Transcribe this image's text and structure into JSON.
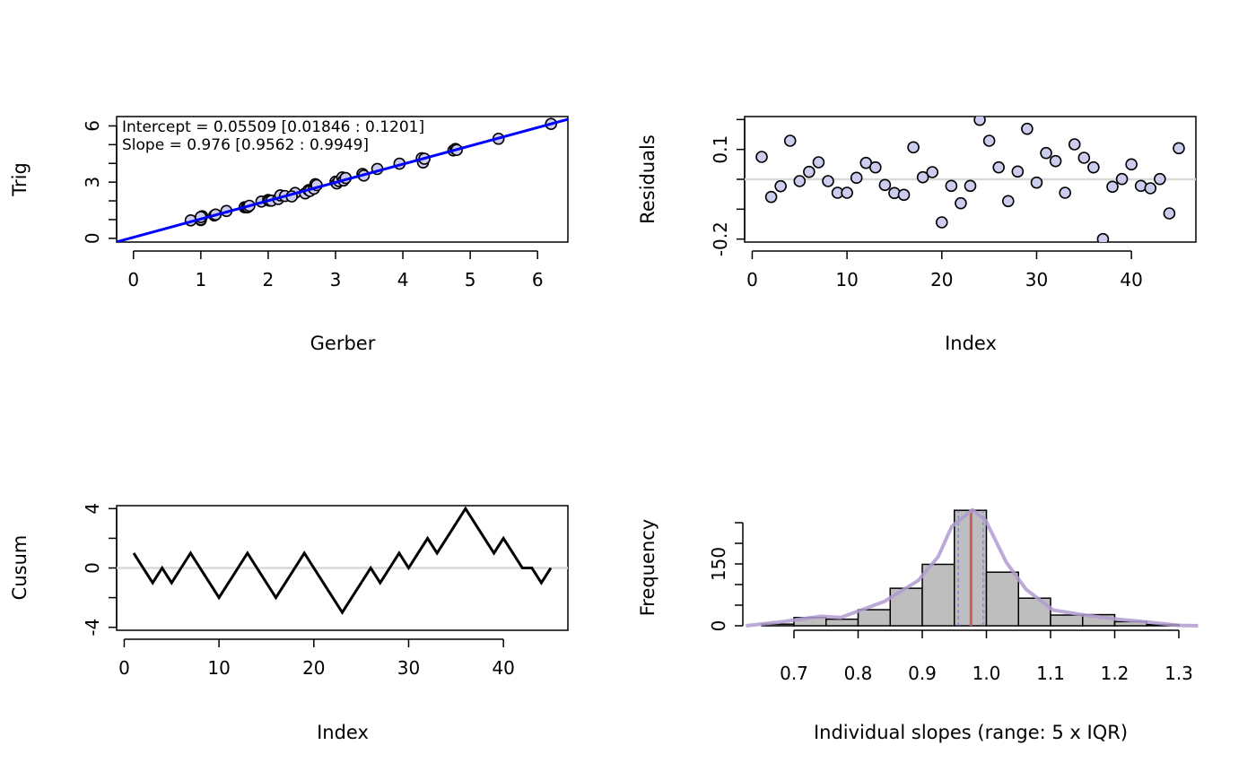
{
  "chart_data": [
    {
      "id": "scatter",
      "type": "scatter",
      "xlabel": "Gerber",
      "ylabel": "Trig",
      "xlim": [
        -0.25,
        6.45
      ],
      "ylim": [
        -0.2,
        6.5
      ],
      "xticks": [
        "0",
        "1",
        "2",
        "3",
        "4",
        "5",
        "6"
      ],
      "yticks": [
        "0",
        "3",
        "6"
      ],
      "yminor": [
        1,
        2,
        4,
        5
      ],
      "annotations": [
        "Intercept = 0.05509 [0.01846 : 0.1201]",
        "Slope = 0.976 [0.9562 : 0.9949]"
      ],
      "fit": {
        "intercept": 0.05509,
        "slope": 0.976,
        "color": "#0000ff"
      },
      "point_fill": "#ccccee",
      "x": [
        0.85,
        1.0,
        1.0,
        1.02,
        1.2,
        1.22,
        1.38,
        1.65,
        1.68,
        1.7,
        1.72,
        1.9,
        2.0,
        2.02,
        2.05,
        2.15,
        2.18,
        2.25,
        2.4,
        2.55,
        2.6,
        2.62,
        2.68,
        2.7,
        2.72,
        3.0,
        3.02,
        3.05,
        3.1,
        3.12,
        3.15,
        3.4,
        3.42,
        3.62,
        3.95,
        4.28,
        4.3,
        4.32,
        4.75,
        4.78,
        4.8,
        5.42,
        6.2,
        2.35,
        1.0
      ]
    },
    {
      "id": "residuals",
      "type": "scatter",
      "xlabel": "Index",
      "ylabel": "Residuals",
      "xlim": [
        -0.8,
        46.8
      ],
      "ylim": [
        -0.21,
        0.21
      ],
      "xticks": [
        "0",
        "10",
        "20",
        "30",
        "40"
      ],
      "yticks": [
        "-0.2",
        "0.1"
      ],
      "ytick_values": [
        -0.2,
        -0.1,
        0,
        0.1,
        0.2
      ],
      "reference_line": 0,
      "point_fill": "#ccccee",
      "values": [
        0.075,
        -0.059,
        -0.023,
        0.129,
        -0.006,
        0.025,
        0.057,
        -0.006,
        -0.045,
        -0.045,
        0.005,
        0.055,
        0.04,
        -0.019,
        -0.046,
        -0.052,
        0.107,
        0.007,
        0.024,
        -0.144,
        -0.022,
        -0.08,
        -0.022,
        0.199,
        0.129,
        0.04,
        -0.073,
        0.026,
        0.169,
        -0.011,
        0.088,
        0.061,
        -0.045,
        0.117,
        0.072,
        0.04,
        -0.2,
        -0.025,
        0.001,
        0.05,
        -0.022,
        -0.03,
        0.001,
        -0.114,
        0.104
      ]
    },
    {
      "id": "cusum",
      "type": "line",
      "xlabel": "Index",
      "ylabel": "Cusum",
      "xlim": [
        -0.8,
        46.8
      ],
      "ylim": [
        -4.2,
        4.2
      ],
      "xticks": [
        "0",
        "10",
        "20",
        "30",
        "40"
      ],
      "yticks": [
        "-4",
        "0",
        "4"
      ],
      "ytick_values": [
        -4,
        -2,
        0,
        2,
        4
      ],
      "reference_line": 0,
      "values": [
        1,
        0,
        -1,
        0,
        -1,
        0,
        1,
        0,
        -1,
        -2,
        -1,
        0,
        1,
        0,
        -1,
        -2,
        -1,
        0,
        1,
        0,
        -1,
        -2,
        -3,
        -2,
        -1,
        0,
        -1,
        0,
        1,
        0,
        1,
        2,
        1,
        2,
        3,
        4,
        3,
        2,
        1,
        2,
        1,
        0,
        0,
        -1,
        0
      ]
    },
    {
      "id": "histogram",
      "type": "bar",
      "xlabel": "Individual slopes (range: 5 x IQR)",
      "ylabel": "Frequency",
      "xlim": [
        0.62,
        1.33
      ],
      "ylim": [
        0,
        285
      ],
      "xticks": [
        "0.7",
        "0.8",
        "0.9",
        "1.0",
        "1.1",
        "1.2",
        "1.3"
      ],
      "yticks": [
        "0",
        "150"
      ],
      "ytick_values": [
        0,
        50,
        100,
        150,
        200,
        250
      ],
      "bin_edges": [
        0.65,
        0.7,
        0.75,
        0.8,
        0.85,
        0.9,
        0.95,
        1.0,
        1.05,
        1.1,
        1.15,
        1.2,
        1.25,
        1.3
      ],
      "counts": [
        4,
        20,
        16,
        39,
        91,
        149,
        280,
        130,
        67,
        26,
        27,
        10,
        3
      ],
      "bar_fill": "#bebebe",
      "density_color": "#b19cd0",
      "density": [
        [
          0.625,
          0
        ],
        [
          0.683,
          10
        ],
        [
          0.741,
          23
        ],
        [
          0.773,
          20
        ],
        [
          0.841,
          59
        ],
        [
          0.894,
          110
        ],
        [
          0.925,
          168
        ],
        [
          0.946,
          241
        ],
        [
          0.978,
          281
        ],
        [
          0.999,
          255
        ],
        [
          1.031,
          154
        ],
        [
          1.062,
          88
        ],
        [
          1.104,
          38
        ],
        [
          1.157,
          25
        ],
        [
          1.204,
          16
        ],
        [
          1.252,
          9
        ],
        [
          1.299,
          1
        ],
        [
          1.33,
          0
        ]
      ],
      "estimate": 0.976,
      "estimate_color": "#cd5c5c",
      "ci": [
        0.9562,
        0.9949
      ],
      "ci_color": "#6677dd"
    }
  ]
}
